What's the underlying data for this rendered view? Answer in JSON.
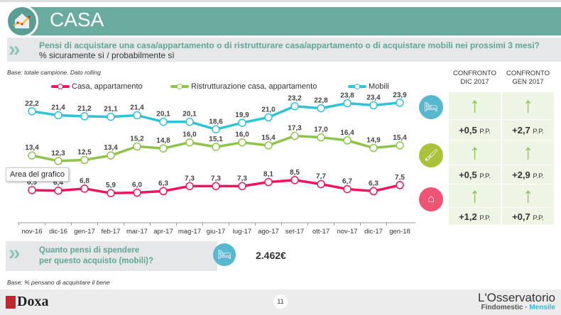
{
  "header": {
    "title": "CASA",
    "icon": "house-chart-icon"
  },
  "question": {
    "text": "Pensi di acquistare una casa/appartamento o di ristrutturare casa/appartamento o di acquistare mobili nei prossimi 3 mesi?",
    "subtext": "% sicuramente sì / probabilmente sì"
  },
  "base_note": "Base: totale campione. Dato rolling",
  "tooltip": "Area del grafico",
  "chart_data": {
    "type": "line",
    "categories": [
      "nov-16",
      "dic-16",
      "gen-17",
      "feb-17",
      "mar-17",
      "apr-17",
      "mag-17",
      "giu-17",
      "lug-17",
      "ago-17",
      "set-17",
      "ott-17",
      "nov-17",
      "dic-17",
      "gen-18"
    ],
    "ylim": [
      0,
      25
    ],
    "grid": false,
    "legend": "top",
    "series": [
      {
        "name": "Casa, appartamento",
        "color": "#f0145f",
        "values": [
          6.5,
          6.4,
          6.8,
          5.9,
          6.0,
          6.3,
          7.3,
          7.3,
          7.3,
          8.1,
          8.5,
          7.7,
          6.7,
          6.3,
          7.5
        ]
      },
      {
        "name": "Ristrutturazione casa, appartamento",
        "color": "#8dc54a",
        "values": [
          13.4,
          12.3,
          12.5,
          13.4,
          15.2,
          14.8,
          16.0,
          15.1,
          16.0,
          15.4,
          17.3,
          17.0,
          16.4,
          14.9,
          15.4
        ]
      },
      {
        "name": "Mobili",
        "color": "#2ec4d6",
        "values": [
          22.2,
          21.4,
          21.2,
          21.1,
          21.4,
          20.1,
          20.1,
          18.6,
          19.9,
          21.0,
          23.2,
          22.8,
          23.8,
          23.4,
          23.9
        ]
      }
    ]
  },
  "comparison": {
    "headers": [
      [
        "CONFRONTO",
        "DIC 2017"
      ],
      [
        "CONFRONTO",
        "GEN 2017"
      ]
    ],
    "unit": "P.P.",
    "rows": [
      {
        "icon": "bed-icon",
        "color": "#58b8d0",
        "values": [
          "+0,5",
          "+2,7"
        ]
      },
      {
        "icon": "paint-roller-icon",
        "color": "#a9c23a",
        "values": [
          "+0,5",
          "+2,9"
        ]
      },
      {
        "icon": "house-icon",
        "color": "#ef5572",
        "values": [
          "+1,2",
          "+0,7"
        ]
      }
    ]
  },
  "spend": {
    "question_line1": "Quanto pensi di spendere",
    "question_line2": "per questo acquisto (mobili)?",
    "value": "2.462€",
    "icon": "bed-icon"
  },
  "base_note2": "Base: % pensano di acquistare il bene",
  "footer": {
    "logo": "Doxa",
    "page": "11",
    "brand": "L'Osservatorio",
    "brand_sub1": "Findomestic ·",
    "brand_sub2": "Mensile"
  }
}
